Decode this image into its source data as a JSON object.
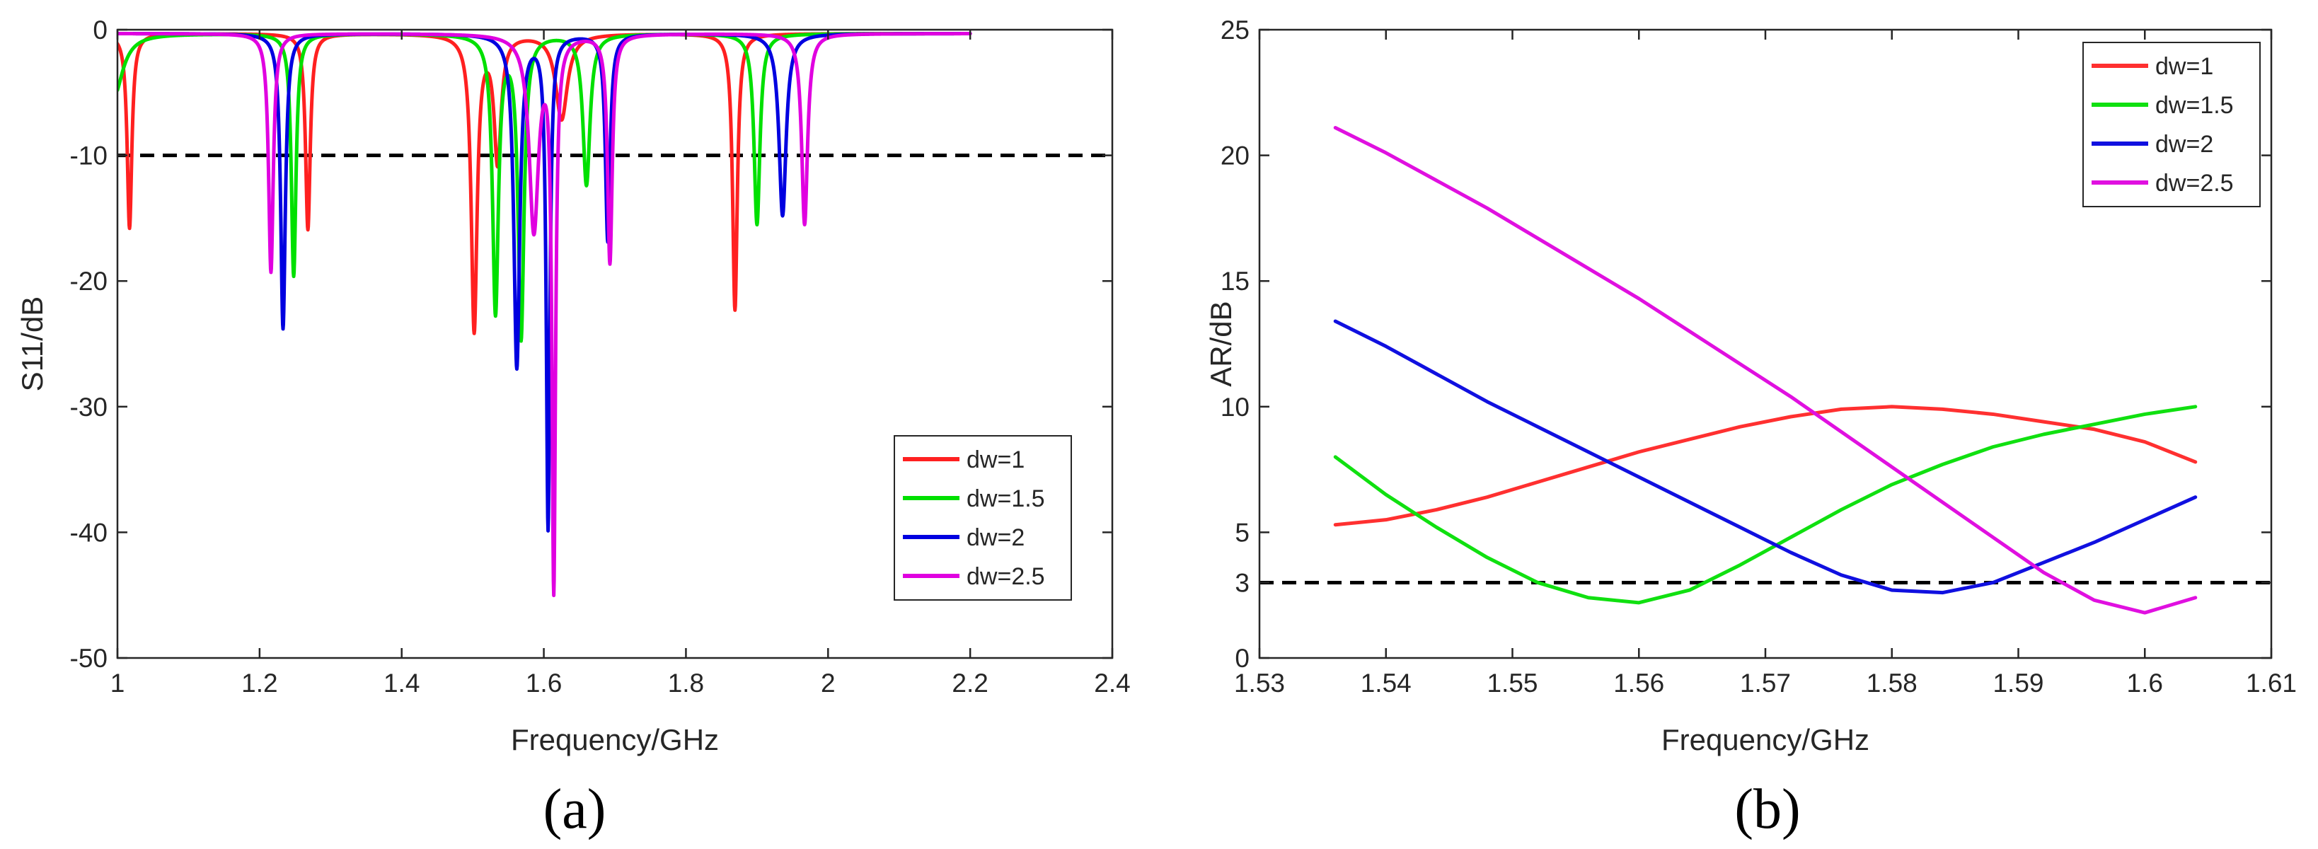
{
  "chart_data": [
    {
      "type": "line",
      "panel_label": "(a)",
      "xlabel": "Frequency/GHz",
      "ylabel": "S11/dB",
      "xlim": [
        1,
        2.4
      ],
      "ylim": [
        -50,
        0
      ],
      "xticks": [
        1,
        1.2,
        1.4,
        1.6,
        1.8,
        2,
        2.2,
        2.4
      ],
      "xtick_labels": [
        "1",
        "1.2",
        "1.4",
        "1.6",
        "1.8",
        "2",
        "2.2",
        "2.4"
      ],
      "yticks": [
        -50,
        -40,
        -30,
        -20,
        -10,
        0
      ],
      "ytick_labels": [
        "-50",
        "-40",
        "-30",
        "-20",
        "-10",
        "0"
      ],
      "grid": false,
      "legend_position": "bottom-right",
      "reference_line": {
        "y": -10,
        "style": "dashed",
        "color": "#000000"
      },
      "series": [
        {
          "name": "dw=1",
          "color": "#ff2020",
          "x_start": 1.0,
          "x_end": 2.2,
          "baseline": -0.3,
          "offset": -0.3,
          "resonances": [
            {
              "f": 1.017,
              "depth": 15.5,
              "w": 0.004
            },
            {
              "f": 1.268,
              "depth": 15.6,
              "w": 0.004
            },
            {
              "f": 1.502,
              "depth": 23.5,
              "w": 0.005
            },
            {
              "f": 1.535,
              "depth": 10.0,
              "w": 0.006
            },
            {
              "f": 1.625,
              "depth": 6.8,
              "w": 0.01
            },
            {
              "f": 1.869,
              "depth": 22.0,
              "w": 0.004
            }
          ]
        },
        {
          "name": "dw=1.5",
          "color": "#00e000",
          "x_start": 1.0,
          "x_end": 2.2,
          "baseline": -0.3,
          "offset": -0.3,
          "resonances": [
            {
              "f": 0.995,
              "depth": 5.0,
              "w": 0.015
            },
            {
              "f": 1.248,
              "depth": 19.3,
              "w": 0.004
            },
            {
              "f": 1.532,
              "depth": 22.0,
              "w": 0.005
            },
            {
              "f": 1.568,
              "depth": 24.0,
              "w": 0.005
            },
            {
              "f": 1.66,
              "depth": 12.0,
              "w": 0.006
            },
            {
              "f": 1.9,
              "depth": 15.2,
              "w": 0.005
            }
          ]
        },
        {
          "name": "dw=2",
          "color": "#0000e0",
          "x_start": 1.0,
          "x_end": 2.2,
          "baseline": -0.3,
          "offset": -0.3,
          "resonances": [
            {
              "f": 1.233,
              "depth": 23.5,
              "w": 0.004
            },
            {
              "f": 1.562,
              "depth": 26.5,
              "w": 0.005
            },
            {
              "f": 1.606,
              "depth": 39.2,
              "w": 0.003
            },
            {
              "f": 1.69,
              "depth": 16.5,
              "w": 0.004
            },
            {
              "f": 1.936,
              "depth": 14.5,
              "w": 0.006
            }
          ]
        },
        {
          "name": "dw=2.5",
          "color": "#e000e0",
          "x_start": 1.0,
          "x_end": 2.2,
          "baseline": -0.3,
          "offset": -0.3,
          "resonances": [
            {
              "f": 1.216,
              "depth": 19.0,
              "w": 0.004
            },
            {
              "f": 1.586,
              "depth": 15.5,
              "w": 0.008
            },
            {
              "f": 1.614,
              "depth": 43.5,
              "w": 0.003
            },
            {
              "f": 1.693,
              "depth": 18.2,
              "w": 0.004
            },
            {
              "f": 1.967,
              "depth": 15.2,
              "w": 0.005
            }
          ]
        }
      ]
    },
    {
      "type": "line",
      "panel_label": "(b)",
      "xlabel": "Frequency/GHz",
      "ylabel": "AR/dB",
      "xlim": [
        1.53,
        1.61
      ],
      "ylim": [
        0,
        25
      ],
      "xticks": [
        1.53,
        1.54,
        1.55,
        1.56,
        1.57,
        1.58,
        1.59,
        1.6,
        1.61
      ],
      "xtick_labels": [
        "1.53",
        "1.54",
        "1.55",
        "1.56",
        "1.57",
        "1.58",
        "1.59",
        "1.6",
        "1.61"
      ],
      "yticks": [
        0,
        3,
        5,
        10,
        15,
        20,
        25
      ],
      "ytick_labels": [
        "0",
        "3",
        "5",
        "10",
        "15",
        "20",
        "25"
      ],
      "grid": false,
      "legend_position": "top-right",
      "reference_line": {
        "y": 3,
        "style": "dashed",
        "color": "#000000"
      },
      "series": [
        {
          "name": "dw=1",
          "color": "#ff3030",
          "x": [
            1.536,
            1.54,
            1.544,
            1.548,
            1.552,
            1.556,
            1.56,
            1.564,
            1.568,
            1.572,
            1.576,
            1.58,
            1.584,
            1.588,
            1.592,
            1.596,
            1.6,
            1.604
          ],
          "y": [
            5.3,
            5.5,
            5.9,
            6.4,
            7.0,
            7.6,
            8.2,
            8.7,
            9.2,
            9.6,
            9.9,
            10.0,
            9.9,
            9.7,
            9.4,
            9.1,
            8.6,
            7.8
          ]
        },
        {
          "name": "dw=1.5",
          "color": "#10e010",
          "x": [
            1.536,
            1.54,
            1.544,
            1.548,
            1.552,
            1.556,
            1.56,
            1.564,
            1.568,
            1.572,
            1.576,
            1.58,
            1.584,
            1.588,
            1.592,
            1.596,
            1.6,
            1.604
          ],
          "y": [
            8.0,
            6.5,
            5.2,
            4.0,
            3.0,
            2.4,
            2.2,
            2.7,
            3.7,
            4.8,
            5.9,
            6.9,
            7.7,
            8.4,
            8.9,
            9.3,
            9.7,
            10.0
          ]
        },
        {
          "name": "dw=2",
          "color": "#1010e0",
          "x": [
            1.536,
            1.54,
            1.544,
            1.548,
            1.552,
            1.556,
            1.56,
            1.564,
            1.568,
            1.572,
            1.576,
            1.58,
            1.584,
            1.588,
            1.592,
            1.596,
            1.6,
            1.604
          ],
          "y": [
            13.4,
            12.4,
            11.3,
            10.2,
            9.2,
            8.2,
            7.2,
            6.2,
            5.2,
            4.2,
            3.3,
            2.7,
            2.6,
            3.0,
            3.8,
            4.6,
            5.5,
            6.4
          ]
        },
        {
          "name": "dw=2.5",
          "color": "#e010e0",
          "x": [
            1.536,
            1.54,
            1.544,
            1.548,
            1.552,
            1.556,
            1.56,
            1.564,
            1.568,
            1.572,
            1.576,
            1.58,
            1.584,
            1.588,
            1.592,
            1.596,
            1.6,
            1.604
          ],
          "y": [
            21.1,
            20.1,
            19.0,
            17.9,
            16.7,
            15.5,
            14.3,
            13.0,
            11.7,
            10.4,
            9.0,
            7.6,
            6.2,
            4.8,
            3.4,
            2.3,
            1.8,
            2.4
          ]
        }
      ]
    }
  ]
}
